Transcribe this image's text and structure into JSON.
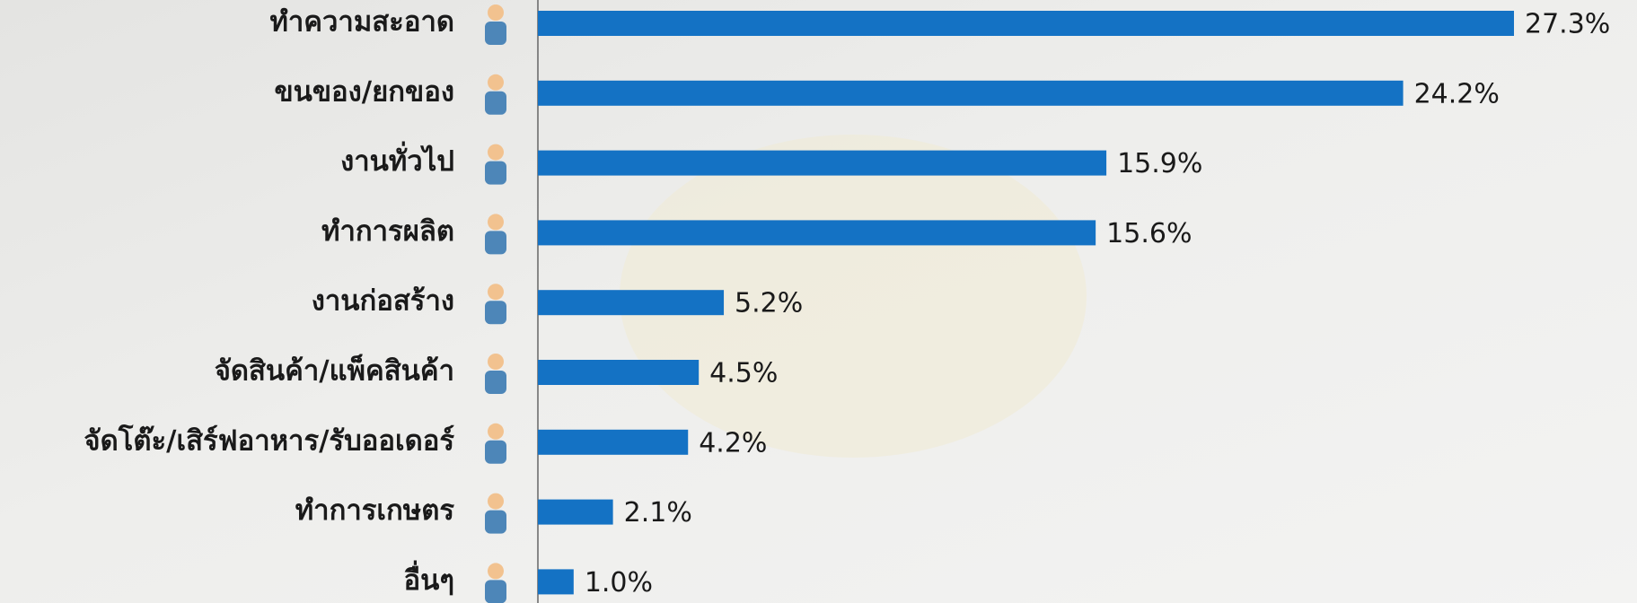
{
  "chart_data": {
    "type": "bar",
    "orientation": "horizontal",
    "color": "#1472c4",
    "categories": [
      "ทำความสะอาด",
      "ขนของ/ยกของ",
      "งานทั่วไป",
      "ทำการผลิต",
      "งานก่อสร้าง",
      "จัดสินค้า/แพ็คสินค้า",
      "จัดโต๊ะ/เสิร์ฟอาหาร/รับออเดอร์",
      "ทำการเกษตร",
      "อื่นๆ"
    ],
    "values": [
      27.3,
      24.2,
      15.9,
      15.6,
      5.2,
      4.5,
      4.2,
      2.1,
      1.0
    ],
    "value_labels": [
      "27.3%",
      "24.2%",
      "15.9%",
      "15.6%",
      "5.2%",
      "4.5%",
      "4.2%",
      "2.1%",
      "1.0%"
    ]
  }
}
